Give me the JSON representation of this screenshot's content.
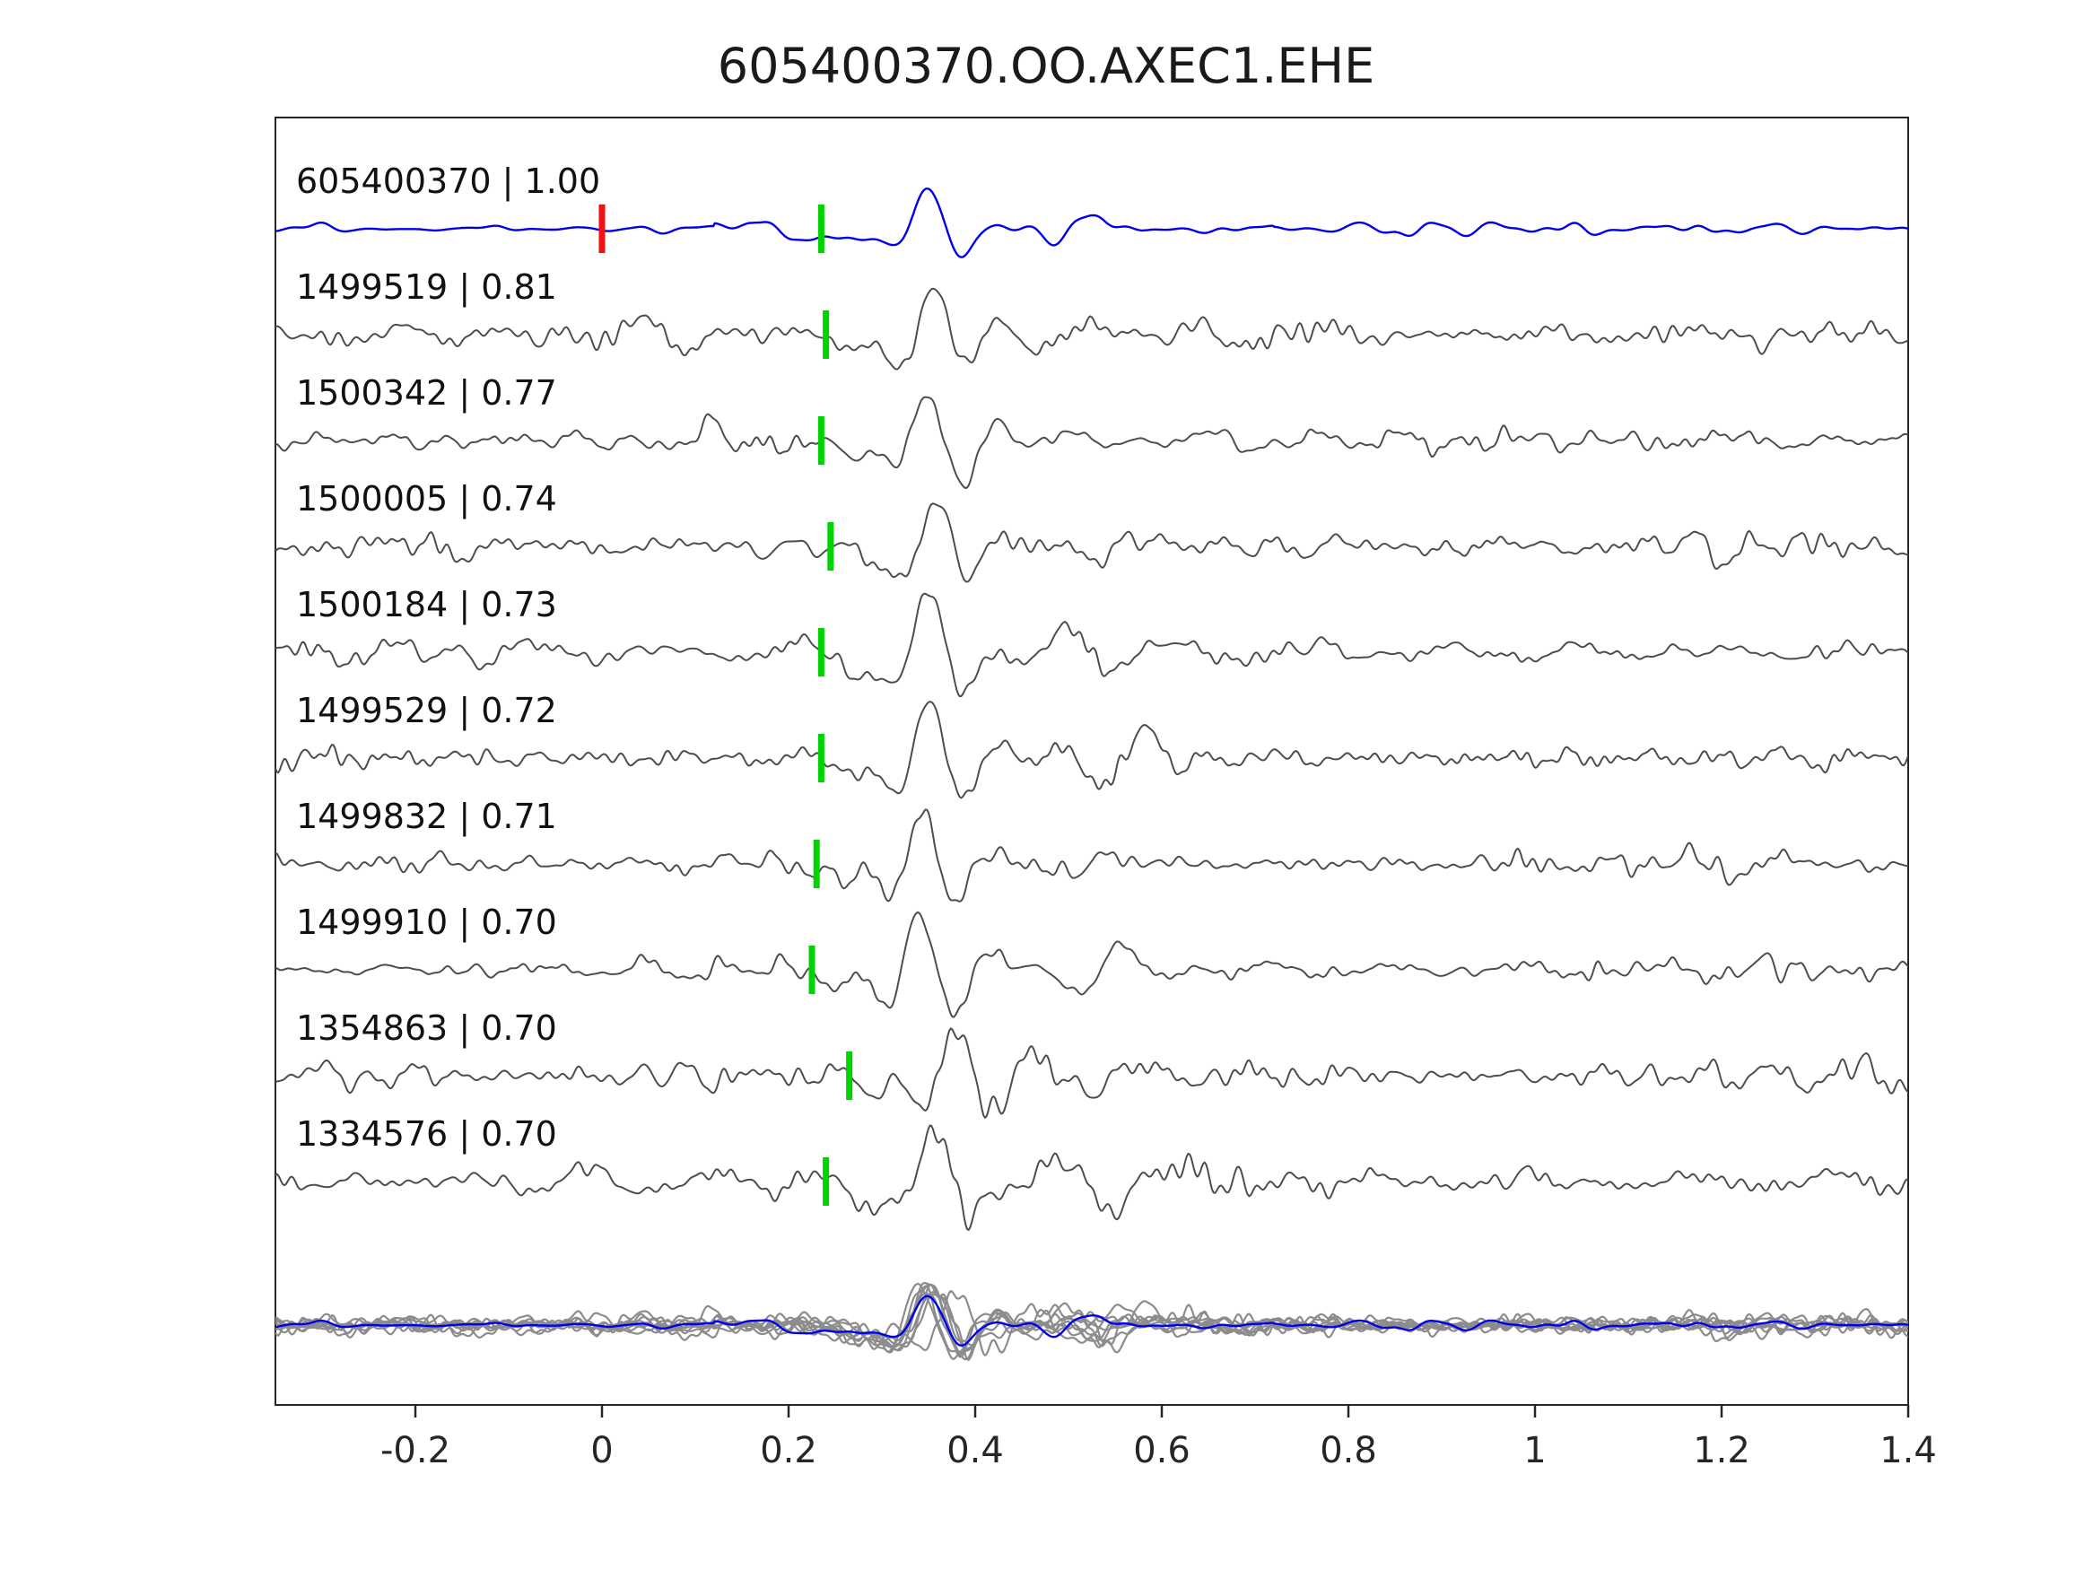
{
  "title": "605400370.OO.AXEC1.EHE",
  "colors": {
    "template": "#0000ee",
    "match": "#4d4d4d",
    "pick": "#00d400",
    "origin_marker": "#ee1111",
    "overlay_gray": "#8c8c8c",
    "axis": "#262626",
    "background": "#ffffff"
  },
  "chart_data": {
    "type": "line",
    "title": "605400370.OO.AXEC1.EHE",
    "description": "Stacked seismic waveform traces: template event (blue, top) and matched detections (gray) with correlation coefficients; green ticks mark pick times, red tick marks template origin; bottom row overlays all traces.",
    "xlim": [
      -0.35,
      1.4
    ],
    "x_tick_values": [
      -0.2,
      0,
      0.2,
      0.4,
      0.6,
      0.8,
      1.0,
      1.2,
      1.4
    ],
    "x_tick_labels": [
      "-0.2",
      "0",
      "0.2",
      "0.4",
      "0.6",
      "0.8",
      "1",
      "1.2",
      "1.4"
    ],
    "grid": false,
    "legend": null,
    "traces": [
      {
        "id": "605400370",
        "cc": "1.00",
        "label": "605400370 | 1.00",
        "role": "template",
        "pick_time": 0.235,
        "origin_marker_time": 0.0,
        "seed": 11,
        "noise_amp": 8,
        "event_amp": 46
      },
      {
        "id": "1499519",
        "cc": "0.81",
        "label": "1499519 | 0.81",
        "role": "match",
        "pick_time": 0.24,
        "seed": 23,
        "noise_amp": 13,
        "event_amp": 55
      },
      {
        "id": "1500342",
        "cc": "0.77",
        "label": "1500342 | 0.77",
        "role": "match",
        "pick_time": 0.235,
        "seed": 37,
        "noise_amp": 12,
        "event_amp": 55
      },
      {
        "id": "1500005",
        "cc": "0.74",
        "label": "1500005 | 0.74",
        "role": "match",
        "pick_time": 0.245,
        "seed": 41,
        "noise_amp": 13,
        "event_amp": 54
      },
      {
        "id": "1500184",
        "cc": "0.73",
        "label": "1500184 | 0.73",
        "role": "match",
        "pick_time": 0.235,
        "seed": 53,
        "noise_amp": 13,
        "event_amp": 55
      },
      {
        "id": "1499529",
        "cc": "0.72",
        "label": "1499529 | 0.72",
        "role": "match",
        "pick_time": 0.235,
        "seed": 67,
        "noise_amp": 12,
        "event_amp": 56
      },
      {
        "id": "1499832",
        "cc": "0.71",
        "label": "1499832 | 0.71",
        "role": "match",
        "pick_time": 0.23,
        "seed": 71,
        "noise_amp": 13,
        "event_amp": 55
      },
      {
        "id": "1499910",
        "cc": "0.70",
        "label": "1499910 | 0.70",
        "role": "match",
        "pick_time": 0.225,
        "seed": 83,
        "noise_amp": 11,
        "event_amp": 56
      },
      {
        "id": "1354863",
        "cc": "0.70",
        "label": "1354863 | 0.70",
        "role": "match",
        "pick_time": 0.265,
        "seed": 97,
        "noise_amp": 16,
        "event_amp": 52
      },
      {
        "id": "1334576",
        "cc": "0.70",
        "label": "1334576 | 0.70",
        "role": "match",
        "pick_time": 0.24,
        "seed": 113,
        "noise_amp": 16,
        "event_amp": 52
      }
    ],
    "overlay": {
      "description": "All matched traces overlaid in gray with the blue template on top",
      "scale": 0.72
    }
  }
}
